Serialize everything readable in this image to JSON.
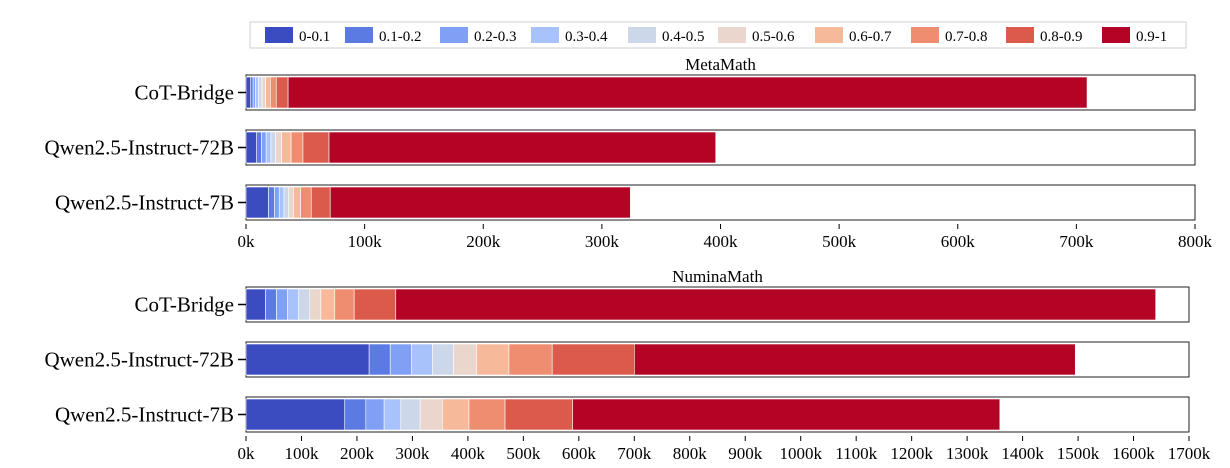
{
  "legend": {
    "entries": [
      "0-0.1",
      "0.1-0.2",
      "0.2-0.3",
      "0.3-0.4",
      "0.4-0.5",
      "0.5-0.6",
      "0.6-0.7",
      "0.7-0.8",
      "0.8-0.9",
      "0.9-1"
    ],
    "colors": [
      "#3a4cc0",
      "#5b7be3",
      "#7fa0f5",
      "#a8c3fc",
      "#cdd7ea",
      "#ead6cc",
      "#f6b99a",
      "#ef8d70",
      "#db5a4b",
      "#b40426"
    ],
    "placement": "top"
  },
  "chart_data": [
    {
      "type": "bar",
      "orientation": "horizontal",
      "stacked": true,
      "title": "MetaMath",
      "categories": [
        "CoT-Bridge",
        "Qwen2.5-Instruct-72B",
        "Qwen2.5-Instruct-7B"
      ],
      "xlim": [
        0,
        800000
      ],
      "xticks": [
        "0k",
        "100k",
        "200k",
        "300k",
        "400k",
        "500k",
        "600k",
        "700k",
        "800k"
      ],
      "series": [
        {
          "name": "0-0.1",
          "values": [
            4000,
            9000,
            19000
          ]
        },
        {
          "name": "0.1-0.2",
          "values": [
            2000,
            4000,
            5000
          ]
        },
        {
          "name": "0.2-0.3",
          "values": [
            2000,
            4000,
            4000
          ]
        },
        {
          "name": "0.3-0.4",
          "values": [
            2500,
            4000,
            4000
          ]
        },
        {
          "name": "0.4-0.5",
          "values": [
            3000,
            4000,
            4000
          ]
        },
        {
          "name": "0.5-0.6",
          "values": [
            3000,
            5000,
            4000
          ]
        },
        {
          "name": "0.6-0.7",
          "values": [
            4000,
            8000,
            6000
          ]
        },
        {
          "name": "0.7-0.8",
          "values": [
            5000,
            10000,
            9000
          ]
        },
        {
          "name": "0.8-0.9",
          "values": [
            10000,
            22000,
            16000
          ]
        },
        {
          "name": "0.9-1",
          "values": [
            673500,
            326000,
            253000
          ]
        }
      ]
    },
    {
      "type": "bar",
      "orientation": "horizontal",
      "stacked": true,
      "title": "NuminaMath",
      "categories": [
        "CoT-Bridge",
        "Qwen2.5-Instruct-72B",
        "Qwen2.5-Instruct-7B"
      ],
      "xlim": [
        0,
        1700000
      ],
      "xticks": [
        "0k",
        "100k",
        "200k",
        "300k",
        "400k",
        "500k",
        "600k",
        "700k",
        "800k",
        "900k",
        "1000k",
        "1100k",
        "1200k",
        "1300k",
        "1400k",
        "1500k",
        "1600k",
        "1700k"
      ],
      "series": [
        {
          "name": "0-0.1",
          "values": [
            35000,
            222000,
            178000
          ]
        },
        {
          "name": "0.1-0.2",
          "values": [
            20000,
            38000,
            38000
          ]
        },
        {
          "name": "0.2-0.3",
          "values": [
            20000,
            38000,
            33000
          ]
        },
        {
          "name": "0.3-0.4",
          "values": [
            20000,
            38000,
            30000
          ]
        },
        {
          "name": "0.4-0.5",
          "values": [
            20000,
            38000,
            35000
          ]
        },
        {
          "name": "0.5-0.6",
          "values": [
            20000,
            42000,
            40000
          ]
        },
        {
          "name": "0.6-0.7",
          "values": [
            25000,
            58000,
            48000
          ]
        },
        {
          "name": "0.7-0.8",
          "values": [
            35000,
            78000,
            65000
          ]
        },
        {
          "name": "0.8-0.9",
          "values": [
            75000,
            148000,
            122000
          ]
        },
        {
          "name": "0.9-1",
          "values": [
            1370000,
            795000,
            770000
          ]
        }
      ]
    }
  ]
}
